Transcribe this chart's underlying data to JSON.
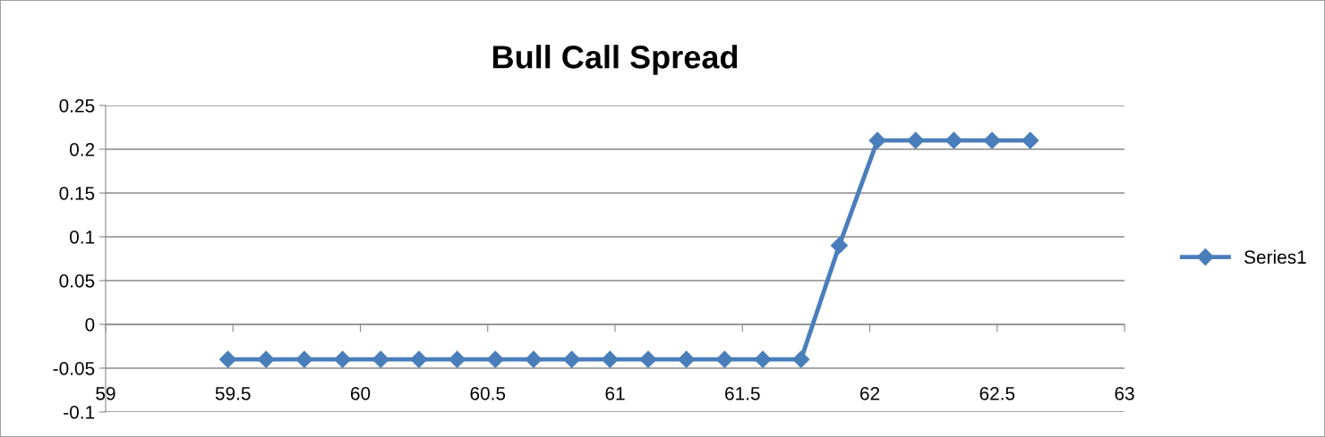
{
  "chart_data": {
    "type": "line",
    "title": "Bull Call Spread",
    "x": [
      59.48,
      59.63,
      59.78,
      59.93,
      60.08,
      60.23,
      60.38,
      60.53,
      60.68,
      60.83,
      60.98,
      61.13,
      61.28,
      61.43,
      61.58,
      61.73,
      61.88,
      62.03,
      62.18,
      62.33,
      62.48,
      62.63
    ],
    "series": [
      {
        "name": "Series1",
        "color": "#4a7ebb",
        "values": [
          -0.04,
          -0.04,
          -0.04,
          -0.04,
          -0.04,
          -0.04,
          -0.04,
          -0.04,
          -0.04,
          -0.04,
          -0.04,
          -0.04,
          -0.04,
          -0.04,
          -0.04,
          -0.04,
          0.09,
          0.21,
          0.21,
          0.21,
          0.21,
          0.21
        ]
      }
    ],
    "xlim": [
      59,
      63
    ],
    "xticks": [
      59,
      59.5,
      60,
      60.5,
      61,
      61.5,
      62,
      62.5,
      63
    ],
    "ylim": [
      -0.1,
      0.25
    ],
    "yticks": [
      -0.1,
      -0.05,
      0,
      0.05,
      0.1,
      0.15,
      0.2,
      0.25
    ],
    "grid": "y",
    "legend": "right",
    "marker": "diamond",
    "line_style": "solid"
  }
}
